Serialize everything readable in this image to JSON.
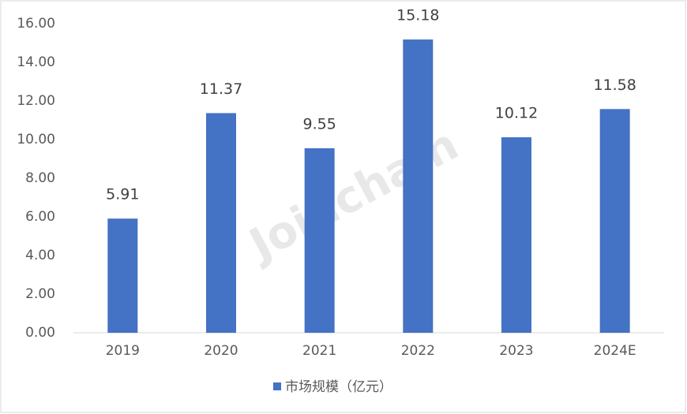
{
  "chart_data": {
    "type": "bar",
    "watermark": "Joinchain",
    "categories": [
      "2019",
      "2020",
      "2021",
      "2022",
      "2023",
      "2024E"
    ],
    "series": [
      {
        "name": "市场规模（亿元）",
        "color": "#4472c4",
        "values": [
          5.91,
          11.37,
          9.55,
          15.18,
          10.12,
          11.58
        ]
      }
    ],
    "ylim": [
      0,
      16
    ],
    "yticks": [
      {
        "value": 0,
        "label": "0.00"
      },
      {
        "value": 2,
        "label": "2.00"
      },
      {
        "value": 4,
        "label": "4.00"
      },
      {
        "value": 6,
        "label": "6.00"
      },
      {
        "value": 8,
        "label": "8.00"
      },
      {
        "value": 10,
        "label": "10.00"
      },
      {
        "value": 12,
        "label": "12.00"
      },
      {
        "value": 14,
        "label": "14.00"
      },
      {
        "value": 16,
        "label": "16.00"
      }
    ],
    "grid": false,
    "legend": "bottom"
  }
}
